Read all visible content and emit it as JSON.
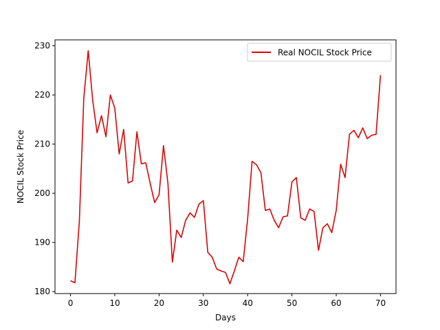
{
  "chart_data": {
    "type": "line",
    "title": "",
    "xlabel": "Days",
    "ylabel": "NOCIL Stock Price",
    "xlim": [
      -3.5,
      73.5
    ],
    "ylim": [
      179.6,
      231.2
    ],
    "xticks": [
      0,
      10,
      20,
      30,
      40,
      50,
      60,
      70
    ],
    "yticks": [
      180,
      190,
      200,
      210,
      220,
      230
    ],
    "grid": false,
    "legend": {
      "placement": "top-right"
    },
    "series": [
      {
        "name": "Real NOCIL Stock Price",
        "color": "#dd0000",
        "x": [
          0,
          1,
          2,
          3,
          4,
          5,
          6,
          7,
          8,
          9,
          10,
          11,
          12,
          13,
          14,
          15,
          16,
          17,
          18,
          19,
          20,
          21,
          22,
          23,
          24,
          25,
          26,
          27,
          28,
          29,
          30,
          31,
          32,
          33,
          34,
          35,
          36,
          37,
          38,
          39,
          40,
          41,
          42,
          43,
          44,
          45,
          46,
          47,
          48,
          49,
          50,
          51,
          52,
          53,
          54,
          55,
          56,
          57,
          58,
          59,
          60,
          61,
          62,
          63,
          64,
          65,
          66,
          67,
          68,
          69,
          70
        ],
        "values": [
          182.2,
          181.8,
          194.3,
          219.3,
          229.0,
          219.0,
          212.3,
          215.8,
          211.5,
          220.0,
          217.3,
          208.0,
          213.0,
          202.1,
          202.5,
          212.5,
          206.0,
          206.2,
          202.0,
          198.1,
          199.7,
          209.7,
          202.0,
          186.0,
          192.5,
          191.0,
          194.5,
          196.0,
          195.1,
          197.8,
          198.5,
          188.0,
          187.0,
          184.6,
          184.2,
          183.9,
          181.6,
          184.2,
          187.0,
          186.1,
          194.8,
          206.5,
          205.8,
          204.2,
          196.5,
          196.8,
          194.5,
          193.0,
          195.2,
          195.4,
          202.3,
          203.2,
          195.0,
          194.5,
          196.8,
          196.3,
          188.4,
          193.0,
          193.8,
          192.0,
          196.5,
          205.9,
          203.2,
          212.0,
          212.8,
          211.3,
          213.3,
          211.1,
          211.8,
          212.0,
          224.0
        ]
      }
    ]
  }
}
